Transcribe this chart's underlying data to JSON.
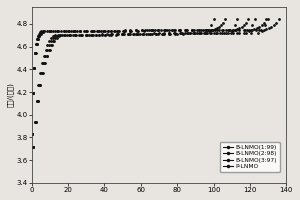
{
  "title": "",
  "xlabel": "",
  "ylabel": "电压/(伏特)",
  "xlim": [
    0,
    140
  ],
  "ylim": [
    3.4,
    4.95
  ],
  "yticks": [
    3.4,
    3.6,
    3.8,
    4.0,
    4.2,
    4.4,
    4.6,
    4.8
  ],
  "xticks": [
    0,
    20,
    40,
    60,
    80,
    100,
    120,
    140
  ],
  "legend_labels": [
    "B-LNMO(1:99)",
    "B-LNMO(2:98)",
    "B-LNMO(3:97)",
    "P-LNMO"
  ],
  "background_color": "#e8e4e0",
  "curve_params": [
    {
      "charge_cap": 107,
      "discharge_cap": 100
    },
    {
      "charge_cap": 120,
      "discharge_cap": 113
    },
    {
      "charge_cap": 130,
      "discharge_cap": 123
    },
    {
      "charge_cap": 137,
      "discharge_cap": 130
    }
  ],
  "v_start": 3.83,
  "v_plateau_charge": 4.74,
  "v_plateau_discharge": 4.72,
  "v_cutoff_charge": 4.88,
  "v_cutoff_discharge": 3.5
}
